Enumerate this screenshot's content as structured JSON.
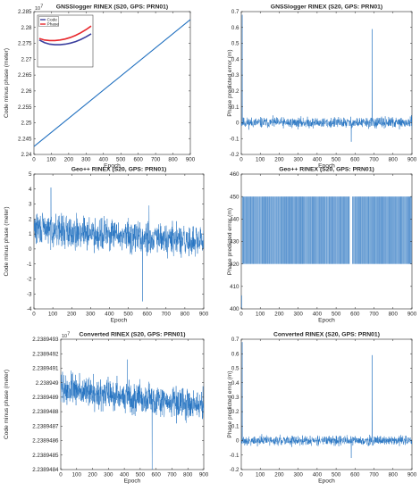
{
  "colors": {
    "series": "#1f6fbf",
    "code": "#3b3f9e",
    "phase": "#e8262b",
    "axis": "#262626",
    "zero": "#5a5a5a"
  },
  "chart_data": [
    {
      "type": "line",
      "title": "GNSSlogger RINEX (S20, GPS: PRN01)",
      "xlabel": "Epoch",
      "ylabel": "Code minus phase (meter)",
      "xlim": [
        0,
        900
      ],
      "ylim": [
        2.24,
        2.285
      ],
      "xticks": [
        "0",
        "100",
        "200",
        "300",
        "400",
        "500",
        "600",
        "700",
        "800",
        "900"
      ],
      "yticks": [
        "2.24",
        "2.245",
        "2.25",
        "2.255",
        "2.26",
        "2.265",
        "2.27",
        "2.275",
        "2.28",
        "2.285"
      ],
      "exponent": "10",
      "exponent_power": "7",
      "grid": false,
      "series": [
        {
          "x": [
            0,
            900
          ],
          "values": [
            2.2425,
            2.2825
          ]
        }
      ],
      "inset": {
        "legend": [
          {
            "name": "Code",
            "color": "#3b3f9e"
          },
          {
            "name": "Phase",
            "color": "#e8262b"
          }
        ],
        "series": [
          {
            "name": "Code",
            "x": [
              0,
              0.1,
              0.2,
              0.3,
              0.4,
              0.5,
              0.6,
              0.7,
              0.8,
              0.9,
              1.0
            ],
            "values": [
              0.52,
              0.47,
              0.44,
              0.43,
              0.43,
              0.44,
              0.46,
              0.49,
              0.53,
              0.58,
              0.64
            ]
          },
          {
            "name": "Phase",
            "x": [
              0,
              0.1,
              0.2,
              0.3,
              0.4,
              0.5,
              0.6,
              0.7,
              0.8,
              0.9,
              1.0
            ],
            "values": [
              0.55,
              0.52,
              0.51,
              0.51,
              0.52,
              0.54,
              0.57,
              0.61,
              0.66,
              0.72,
              0.79
            ]
          }
        ]
      }
    },
    {
      "type": "line",
      "title": "GNSSlogger RINEX (S20, GPS: PRN01)",
      "xlabel": "Epoch",
      "ylabel": "Phase predicted error (m)",
      "xlim": [
        0,
        900
      ],
      "ylim": [
        -0.2,
        0.7
      ],
      "xticks": [
        "0",
        "100",
        "200",
        "300",
        "400",
        "500",
        "600",
        "700",
        "800",
        "900"
      ],
      "yticks": [
        "-0.2",
        "-0.1",
        "0",
        "0.1",
        "0.2",
        "0.3",
        "0.4",
        "0.5",
        "0.6",
        "0.7"
      ],
      "grid": false,
      "noise": {
        "mean": 0.0,
        "amplitude": 0.028,
        "seed": 11
      },
      "spikes": [
        {
          "x": 5,
          "value": 0.68
        },
        {
          "x": 580,
          "value": -0.12
        },
        {
          "x": 690,
          "value": 0.59
        }
      ]
    },
    {
      "type": "line",
      "title": "Geo++ RINEX (S20, GPS: PRN01)",
      "xlabel": "Epoch",
      "ylabel": "Code minus phase (meter)",
      "xlim": [
        0,
        900
      ],
      "ylim": [
        -4,
        5
      ],
      "xticks": [
        "0",
        "100",
        "200",
        "300",
        "400",
        "500",
        "600",
        "700",
        "800",
        "900"
      ],
      "yticks": [
        "-4",
        "-3",
        "-2",
        "-1",
        "0",
        "1",
        "2",
        "3",
        "4",
        "5"
      ],
      "grid": false,
      "noise": {
        "start": 1.4,
        "end": 0.4,
        "amplitude": 0.9,
        "seed": 29
      },
      "spikes": [
        {
          "x": 90,
          "value": 4.1
        },
        {
          "x": 575,
          "value": -3.5
        },
        {
          "x": 610,
          "value": 2.9
        }
      ]
    },
    {
      "type": "line",
      "title": "Geo++ RINEX (S20, GPS: PRN01)",
      "xlabel": "Epoch",
      "ylabel": "Phase predicted error (m)",
      "xlim": [
        0,
        900
      ],
      "ylim": [
        400,
        460
      ],
      "xticks": [
        "0",
        "100",
        "200",
        "300",
        "400",
        "500",
        "600",
        "700",
        "800",
        "900"
      ],
      "yticks": [
        "400",
        "410",
        "420",
        "430",
        "440",
        "450",
        "460"
      ],
      "grid": false,
      "band": {
        "low": 420,
        "high": 450,
        "start_x": 5,
        "end_x": 900,
        "gap": [
          572,
          584
        ],
        "seed": 47
      },
      "spikes": [
        {
          "x": 2,
          "value": 406
        }
      ]
    },
    {
      "type": "line",
      "title": "Converted RINEX (S20, GPS: PRN01)",
      "xlabel": "Epoch",
      "ylabel": "Code minus phase (meter)",
      "xlim": [
        0,
        900
      ],
      "ylim": [
        2.2389484,
        2.2389493
      ],
      "xticks": [
        "0",
        "100",
        "200",
        "300",
        "400",
        "500",
        "600",
        "700",
        "800",
        "900"
      ],
      "yticks": [
        "2.2389484",
        "2.2389485",
        "2.2389486",
        "2.2389487",
        "2.2389488",
        "2.2389489",
        "2.238949",
        "2.2389491",
        "2.2389492",
        "2.2389493"
      ],
      "exponent": "10",
      "exponent_power": "7",
      "grid": false,
      "noise": {
        "start": 2.23894896,
        "end": 2.23894884,
        "amplitude": 9e-08,
        "seed": 73
      },
      "spikes": [
        {
          "x": 575,
          "value": 2.2389484
        },
        {
          "x": 420,
          "value": 2.23894916
        }
      ]
    },
    {
      "type": "line",
      "title": "Converted RINEX (S20, GPS: PRN01)",
      "xlabel": "Epoch",
      "ylabel": "Phase predicted error (m)",
      "xlim": [
        0,
        900
      ],
      "ylim": [
        -0.2,
        0.7
      ],
      "xticks": [
        "0",
        "100",
        "200",
        "300",
        "400",
        "500",
        "600",
        "700",
        "800",
        "900"
      ],
      "yticks": [
        "-0.2",
        "-0.1",
        "0",
        "0.1",
        "0.2",
        "0.3",
        "0.4",
        "0.5",
        "0.6",
        "0.7"
      ],
      "grid": false,
      "noise": {
        "mean": 0.0,
        "amplitude": 0.028,
        "seed": 91
      },
      "spikes": [
        {
          "x": 5,
          "value": 0.68
        },
        {
          "x": 580,
          "value": -0.12
        },
        {
          "x": 690,
          "value": 0.59
        }
      ]
    }
  ]
}
